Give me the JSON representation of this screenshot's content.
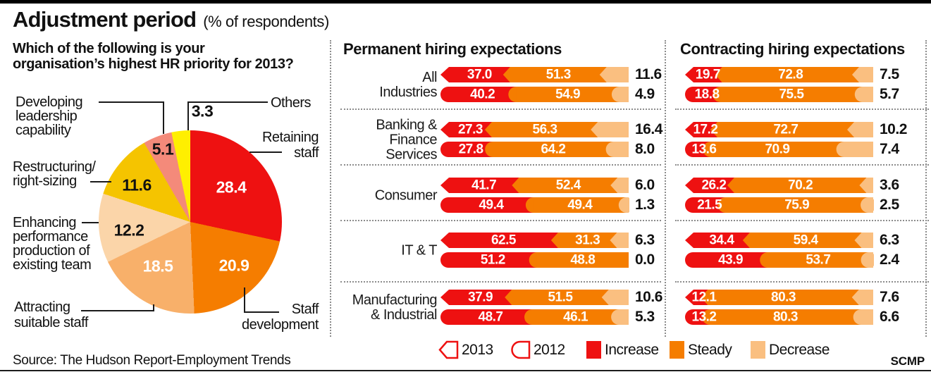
{
  "header": {
    "title": "Adjustment period",
    "subtitle": "(% of respondents)"
  },
  "footer": {
    "source": "Source: The Hudson Report-Employment Trends",
    "credit": "SCMP"
  },
  "legend": {
    "y2013": "2013",
    "y2012": "2012",
    "increase": "Increase",
    "steady": "Steady",
    "decrease": "Decrease"
  },
  "colors": {
    "increase": "#ee1111",
    "steady": "#f57d00",
    "decrease": "#fabf80",
    "line": "#1a1a1a",
    "dotted": "#8c8c8c"
  },
  "chart_data": [
    {
      "type": "pie",
      "title": "Which of the following is your\norganisation’s highest HR priority for 2013?",
      "start_angle_deg": 0,
      "direction": "clockwise",
      "slices": [
        {
          "label": "Retaining staff",
          "display": "Retaining\nstaff",
          "value": 28.4,
          "color": "#ee1111",
          "value_label": "inside-white"
        },
        {
          "label": "Staff development",
          "display": "Staff\ndevelopment",
          "value": 20.9,
          "color": "#f57d00",
          "value_label": "inside-white"
        },
        {
          "label": "Attracting suitable staff",
          "display": "Attracting\nsuitable staff",
          "value": 18.5,
          "color": "#f8b06a",
          "value_label": "inside-white"
        },
        {
          "label": "Enhancing performance production of existing team",
          "display": "Enhancing\nperformance\nproduction of\nexisting team",
          "value": 12.2,
          "color": "#fbd5a9",
          "value_label": "on-slice-black"
        },
        {
          "label": "Restructuring/right-sizing",
          "display": "Restructuring/\nright-sizing",
          "value": 11.6,
          "color": "#f5c400",
          "value_label": "on-slice-black"
        },
        {
          "label": "Developing leadership capability",
          "display": "Developing\nleadership\ncapability",
          "value": 5.1,
          "color": "#f48a7a",
          "value_label": "on-slice-black"
        },
        {
          "label": "Others",
          "display": "Others",
          "value": 3.3,
          "color": "#ffef00",
          "value_label": "outside-black"
        }
      ]
    },
    {
      "type": "bar",
      "subtype": "horizontal-stacked-grouped",
      "title": "Permanent hiring expectations",
      "segments": [
        "Increase",
        "Steady",
        "Decrease"
      ],
      "series_years": [
        "2013",
        "2012"
      ],
      "xlim": [
        0,
        100
      ],
      "rows": [
        {
          "category": "All Industries",
          "display": "All\nIndustries",
          "y2013": [
            37.0,
            51.3,
            11.6
          ],
          "y2012": [
            40.2,
            54.9,
            4.9
          ]
        },
        {
          "category": "Banking & Finance Services",
          "display": "Banking &\nFinance\nServices",
          "y2013": [
            27.3,
            56.3,
            16.4
          ],
          "y2012": [
            27.8,
            64.2,
            8.0
          ]
        },
        {
          "category": "Consumer",
          "display": "Consumer",
          "y2013": [
            41.7,
            52.4,
            6.0
          ],
          "y2012": [
            49.4,
            49.4,
            1.3
          ]
        },
        {
          "category": "IT & T",
          "display": "IT & T",
          "y2013": [
            62.5,
            31.3,
            6.3
          ],
          "y2012": [
            51.2,
            48.8,
            0.0
          ]
        },
        {
          "category": "Manufacturing & Industrial",
          "display": "Manufacturing\n& Industrial",
          "y2013": [
            37.9,
            51.5,
            10.6
          ],
          "y2012": [
            48.7,
            46.1,
            5.3
          ]
        }
      ]
    },
    {
      "type": "bar",
      "subtype": "horizontal-stacked-grouped",
      "title": "Contracting hiring expectations",
      "segments": [
        "Increase",
        "Steady",
        "Decrease"
      ],
      "series_years": [
        "2013",
        "2012"
      ],
      "xlim": [
        0,
        100
      ],
      "rows": [
        {
          "category": "All Industries",
          "y2013": [
            19.7,
            72.8,
            7.5
          ],
          "y2012": [
            18.8,
            75.5,
            5.7
          ]
        },
        {
          "category": "Banking & Finance Services",
          "y2013": [
            17.2,
            72.7,
            10.2
          ],
          "y2012": [
            13.6,
            70.9,
            7.4
          ]
        },
        {
          "category": "Consumer",
          "y2013": [
            26.2,
            70.2,
            3.6
          ],
          "y2012": [
            21.5,
            75.9,
            2.5
          ]
        },
        {
          "category": "IT & T",
          "y2013": [
            34.4,
            59.4,
            6.3
          ],
          "y2012": [
            43.9,
            53.7,
            2.4
          ]
        },
        {
          "category": "Manufacturing & Industrial",
          "y2013": [
            12.1,
            80.3,
            7.6
          ],
          "y2012": [
            13.2,
            80.3,
            6.6
          ]
        }
      ]
    }
  ]
}
